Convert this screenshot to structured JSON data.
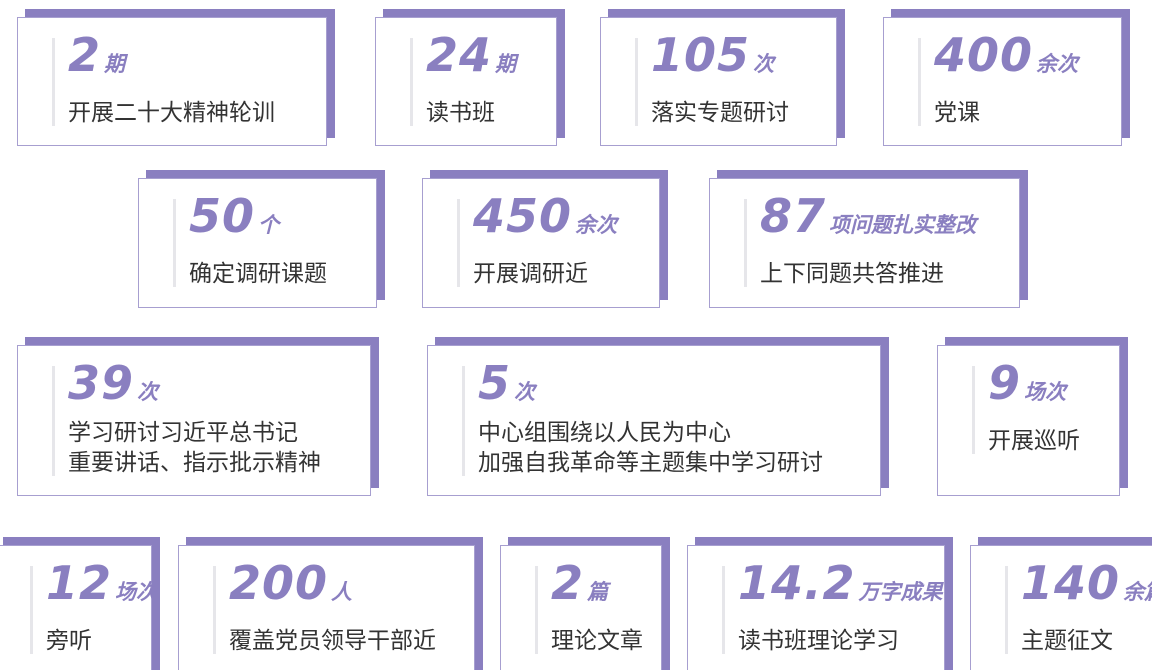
{
  "cards": [
    {
      "number": "2",
      "unit": "期",
      "lines": [
        "开展二十大精神轮训"
      ]
    },
    {
      "number": "24",
      "unit": "期",
      "lines": [
        "读书班"
      ]
    },
    {
      "number": "105",
      "unit": "次",
      "lines": [
        "落实专题研讨"
      ]
    },
    {
      "number": "400",
      "unit": "余次",
      "lines": [
        "党课"
      ]
    },
    {
      "number": "50",
      "unit": "个",
      "lines": [
        "确定调研课题"
      ]
    },
    {
      "number": "450",
      "unit": "余次",
      "lines": [
        "开展调研近"
      ]
    },
    {
      "number": "87",
      "unit": "项问题扎实整改",
      "lines": [
        "上下同题共答推进"
      ]
    },
    {
      "number": "39",
      "unit": "次",
      "lines": [
        "学习研讨习近平总书记",
        "重要讲话、指示批示精神"
      ]
    },
    {
      "number": "5",
      "unit": "次",
      "lines": [
        "中心组围绕以人民为中心",
        "加强自我革命等主题集中学习研讨"
      ]
    },
    {
      "number": "9",
      "unit": "场次",
      "lines": [
        "开展巡听"
      ]
    },
    {
      "number": "12",
      "unit": "场次",
      "lines": [
        "旁听"
      ]
    },
    {
      "number": "200",
      "unit": "人",
      "lines": [
        "覆盖党员领导干部近"
      ]
    },
    {
      "number": "2",
      "unit": "篇",
      "lines": [
        "理论文章"
      ]
    },
    {
      "number": "14.2",
      "unit": "万字成果",
      "lines": [
        "读书班理论学习"
      ]
    },
    {
      "number": "140",
      "unit": "余篇",
      "lines": [
        "主题征文"
      ]
    }
  ]
}
